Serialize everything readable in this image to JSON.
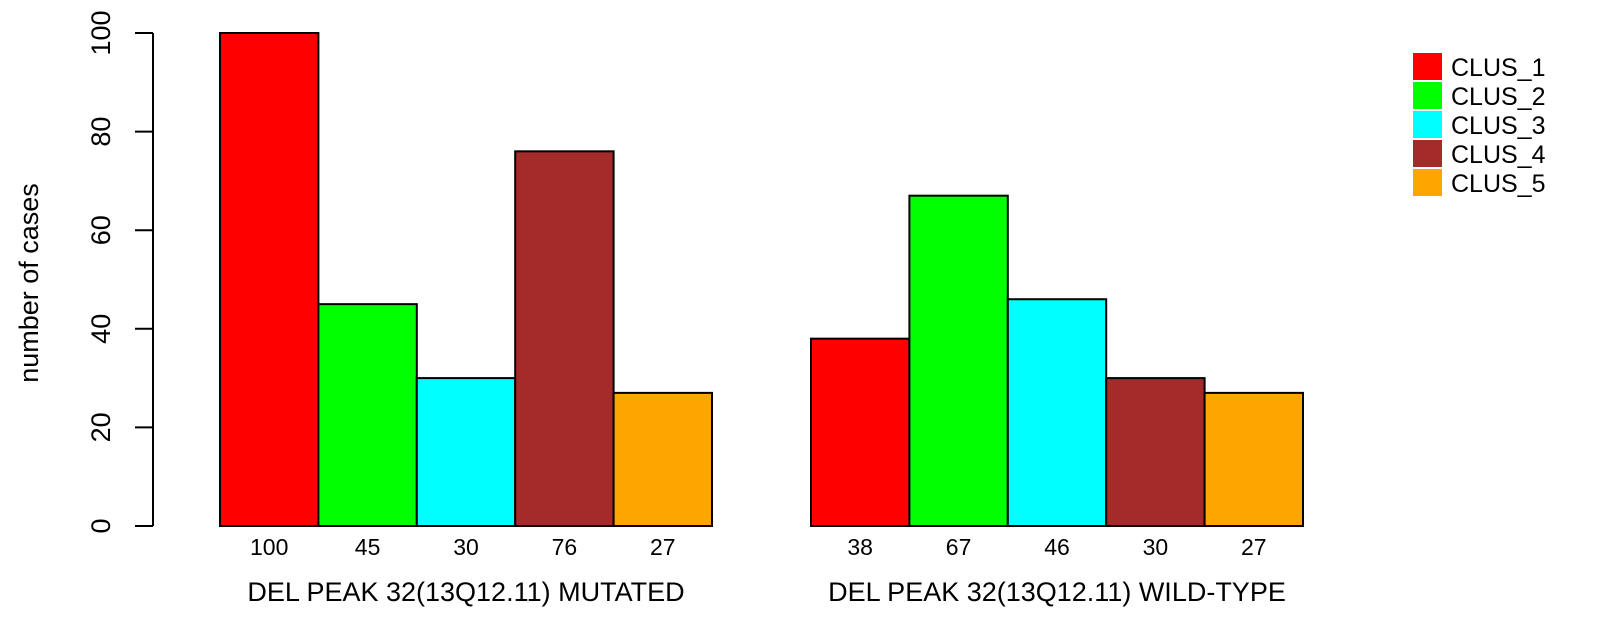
{
  "chart_data": {
    "type": "bar",
    "ylabel": "number of cases",
    "ylim": [
      0,
      100
    ],
    "yticks": [
      0,
      20,
      40,
      60,
      80,
      100
    ],
    "groups": [
      "DEL PEAK 32(13Q12.11) MUTATED",
      "DEL PEAK 32(13Q12.11) WILD-TYPE"
    ],
    "series": [
      {
        "name": "CLUS_1",
        "color": "#ff0000",
        "values": [
          100,
          38
        ]
      },
      {
        "name": "CLUS_2",
        "color": "#00ff00",
        "values": [
          45,
          67
        ]
      },
      {
        "name": "CLUS_3",
        "color": "#00ffff",
        "values": [
          30,
          46
        ]
      },
      {
        "name": "CLUS_4",
        "color": "#a52a2a",
        "values": [
          76,
          30
        ]
      },
      {
        "name": "CLUS_5",
        "color": "#ffa500",
        "values": [
          27,
          27
        ]
      }
    ],
    "bar_labels": [
      [
        "100",
        "45",
        "30",
        "76",
        "27"
      ],
      [
        "38",
        "67",
        "46",
        "30",
        "27"
      ]
    ],
    "legend_position": "top-right",
    "grid": false
  }
}
